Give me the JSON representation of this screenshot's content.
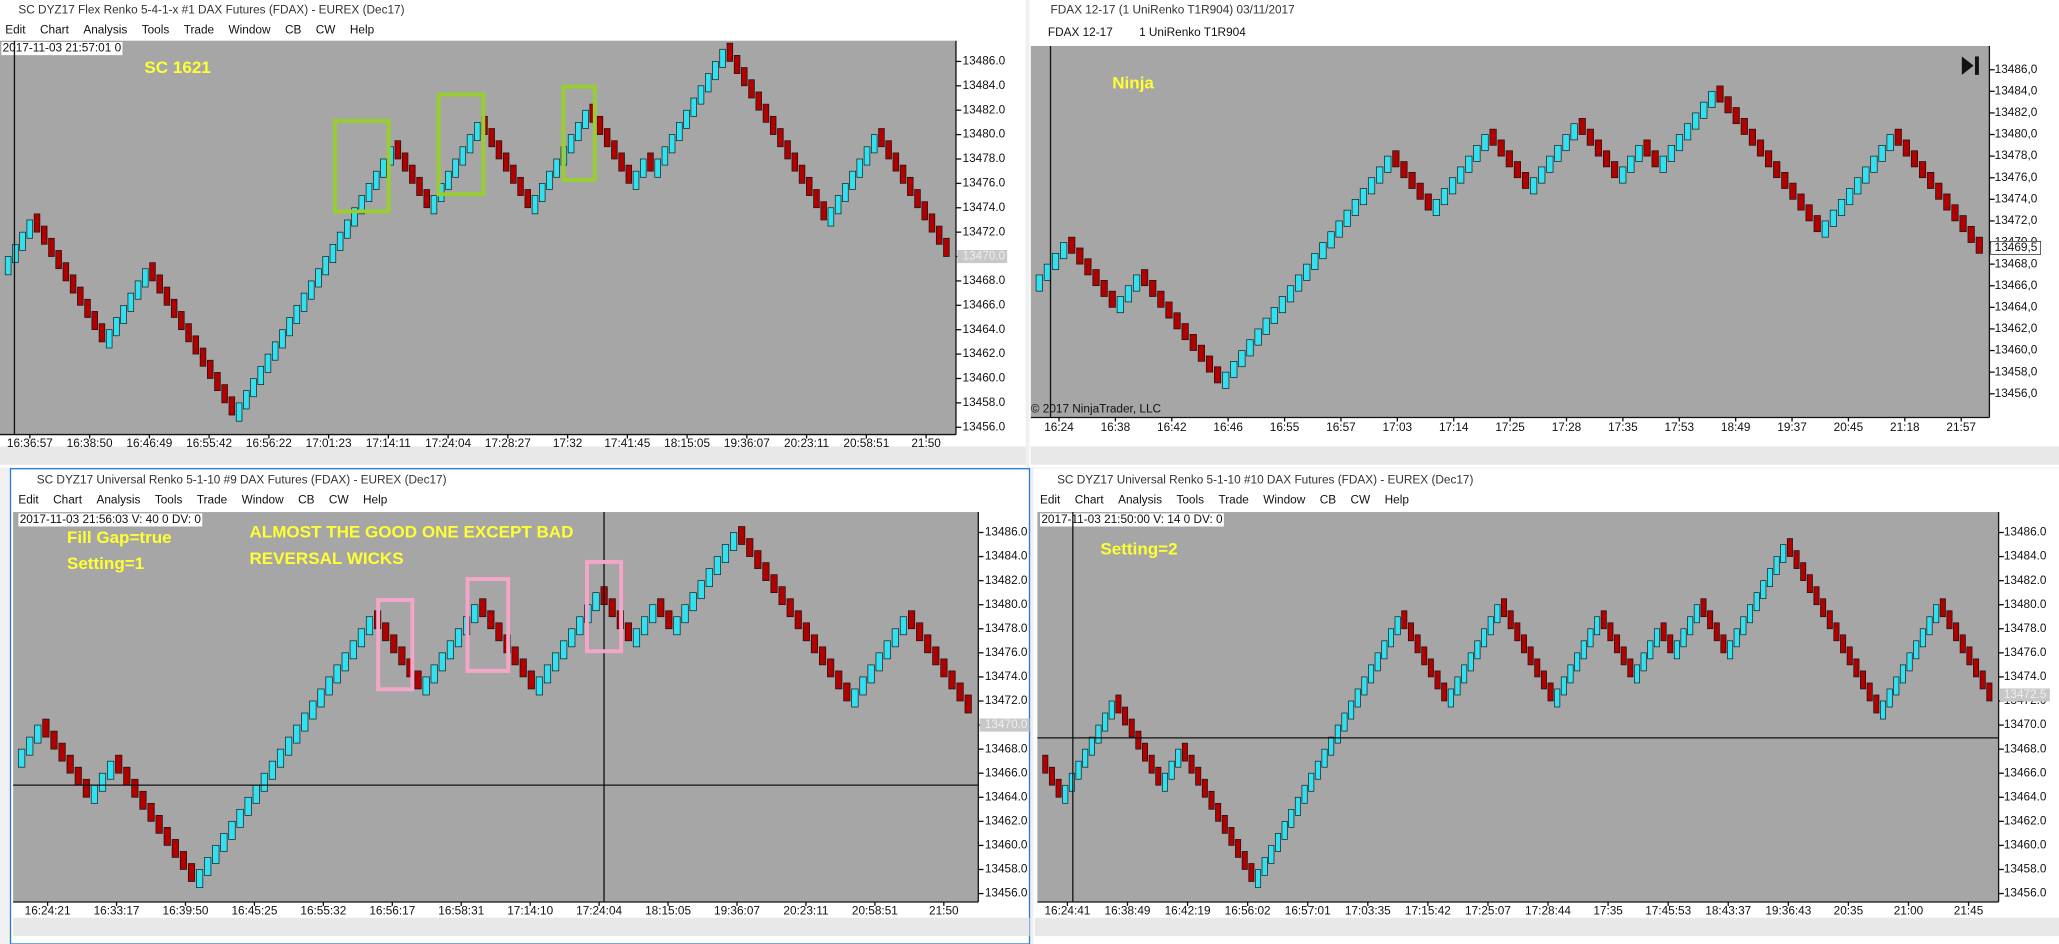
{
  "windows": [
    {
      "title": "SC DYZ17  Flex Renko 5-4-1-x  #1  DAX Futures (FDAX) - EUREX (Dec17)",
      "menu": [
        "Edit",
        "Chart",
        "Analysis",
        "Tools",
        "Trade",
        "Window",
        "CB",
        "CW",
        "Help"
      ]
    },
    {
      "title": "FDAX 12-17 (1 UniRenko T1R904)  03/11/2017",
      "toolbar": [
        "FDAX 12-17",
        "1 UniRenko T1R904"
      ]
    },
    {
      "title": "SC DYZ17  Universal Renko 5-1-10  #9  DAX Futures (FDAX) - EUREX (Dec17)",
      "menu": [
        "Edit",
        "Chart",
        "Analysis",
        "Tools",
        "Trade",
        "Window",
        "CB",
        "CW",
        "Help"
      ]
    },
    {
      "title": "SC DYZ17  Universal Renko 5-1-10  #10  DAX Futures (FDAX) - EUREX (Dec17)",
      "menu": [
        "Edit",
        "Chart",
        "Analysis",
        "Tools",
        "Trade",
        "Window",
        "CB",
        "CW",
        "Help"
      ]
    }
  ],
  "chart_data": [
    {
      "type": "renko",
      "info": "2017-11-03 21:57:01 0",
      "annotations": [
        "SC 1621"
      ],
      "up_color": "#33e0f0",
      "down_color": "#b00000",
      "ylim": [
        13455.4,
        13487.7
      ],
      "yticks": [
        {
          "value": 13456,
          "label": "13456.0"
        },
        {
          "value": 13458,
          "label": "13458.0"
        },
        {
          "value": 13460,
          "label": "13460.0"
        },
        {
          "value": 13462,
          "label": "13462.0"
        },
        {
          "value": 13464,
          "label": "13464.0"
        },
        {
          "value": 13466,
          "label": "13466.0"
        },
        {
          "value": 13468,
          "label": "13468.0"
        },
        {
          "value": 13470,
          "label": "13470.0"
        },
        {
          "value": 13472,
          "label": "13472.0"
        },
        {
          "value": 13474,
          "label": "13474.0"
        },
        {
          "value": 13476,
          "label": "13476.0"
        },
        {
          "value": 13478,
          "label": "13478.0"
        },
        {
          "value": 13480,
          "label": "13480.0"
        },
        {
          "value": 13482,
          "label": "13482.0"
        },
        {
          "value": 13484,
          "label": "13484.0"
        },
        {
          "value": 13486,
          "label": "13486.0"
        }
      ],
      "xtick_labels": [
        "16:36:57",
        "16:38:50",
        "16:46:49",
        "16:55:42",
        "16:56:22",
        "17:01:23",
        "17:14:11",
        "17:24:04",
        "17:28:27",
        "17:32",
        "17:41:45",
        "18:15:05",
        "19:36:07",
        "20:23:11",
        "20:58:51",
        "21:50"
      ],
      "last_price": {
        "value": 13470,
        "label": "13470.0"
      },
      "values": [
        13470,
        13471,
        13472,
        13473,
        13472,
        13471,
        13470,
        13469,
        13468,
        13467,
        13466,
        13465,
        13464,
        13463,
        13464,
        13465,
        13466,
        13467,
        13468,
        13469,
        13468,
        13467,
        13466,
        13465,
        13464,
        13463,
        13462,
        13461,
        13460,
        13459,
        13458,
        13457,
        13458,
        13459,
        13460,
        13461,
        13462,
        13463,
        13464,
        13465,
        13466,
        13467,
        13468,
        13469,
        13470,
        13471,
        13472,
        13473,
        13474,
        13475,
        13476,
        13477,
        13478,
        13479,
        13478,
        13477,
        13476,
        13475,
        13474,
        13475,
        13476,
        13477,
        13478,
        13479,
        13480,
        13481,
        13480,
        13479,
        13478,
        13477,
        13476,
        13475,
        13474,
        13475,
        13476,
        13477,
        13478,
        13479,
        13480,
        13481,
        13482,
        13481,
        13480,
        13479,
        13478,
        13477,
        13476,
        13477,
        13478,
        13477,
        13478,
        13479,
        13480,
        13481,
        13482,
        13483,
        13484,
        13485,
        13486,
        13487,
        13486,
        13485,
        13484,
        13483,
        13482,
        13481,
        13480,
        13479,
        13478,
        13477,
        13476,
        13475,
        13474,
        13473,
        13474,
        13475,
        13476,
        13477,
        13478,
        13479,
        13480,
        13479,
        13478,
        13477,
        13476,
        13475,
        13474,
        13473,
        13472,
        13471,
        13470
      ]
    },
    {
      "type": "renko",
      "annotations": [
        "Ninja",
        "© 2017 NinjaTrader, LLC"
      ],
      "up_color": "#33e0f0",
      "down_color": "#b00000",
      "ylim": [
        13453.8,
        13488.2
      ],
      "yticks": [
        {
          "value": 13456,
          "label": "13456,0"
        },
        {
          "value": 13458,
          "label": "13458,0"
        },
        {
          "value": 13460,
          "label": "13460,0"
        },
        {
          "value": 13462,
          "label": "13462,0"
        },
        {
          "value": 13464,
          "label": "13464,0"
        },
        {
          "value": 13466,
          "label": "13466,0"
        },
        {
          "value": 13468,
          "label": "13468,0"
        },
        {
          "value": 13470,
          "label": "13470,0"
        },
        {
          "value": 13472,
          "label": "13472,0"
        },
        {
          "value": 13474,
          "label": "13474,0"
        },
        {
          "value": 13476,
          "label": "13476,0"
        },
        {
          "value": 13478,
          "label": "13478,0"
        },
        {
          "value": 13480,
          "label": "13480,0"
        },
        {
          "value": 13482,
          "label": "13482,0"
        },
        {
          "value": 13484,
          "label": "13484,0"
        },
        {
          "value": 13486,
          "label": "13486,0"
        }
      ],
      "xtick_labels": [
        "16:24",
        "16:38",
        "16:42",
        "16:46",
        "16:55",
        "16:57",
        "17:03",
        "17:14",
        "17:25",
        "17:28",
        "17:35",
        "17:53",
        "18:49",
        "19:37",
        "20:45",
        "21:18",
        "21:57"
      ],
      "last_price": {
        "value": 13469.5,
        "label": "13469,5"
      },
      "values": [
        13467,
        13468,
        13469,
        13470,
        13469,
        13468,
        13467,
        13466,
        13465,
        13464,
        13465,
        13466,
        13467,
        13466,
        13465,
        13464,
        13463,
        13462,
        13461,
        13460,
        13459,
        13458,
        13457,
        13458,
        13459,
        13460,
        13461,
        13462,
        13463,
        13464,
        13465,
        13466,
        13467,
        13468,
        13469,
        13470,
        13471,
        13472,
        13473,
        13474,
        13475,
        13476,
        13477,
        13478,
        13477,
        13476,
        13475,
        13474,
        13473,
        13474,
        13475,
        13476,
        13477,
        13478,
        13479,
        13480,
        13479,
        13478,
        13477,
        13476,
        13475,
        13476,
        13477,
        13478,
        13479,
        13480,
        13481,
        13480,
        13479,
        13478,
        13477,
        13476,
        13477,
        13478,
        13479,
        13478,
        13477,
        13478,
        13479,
        13480,
        13481,
        13482,
        13483,
        13484,
        13483,
        13482,
        13481,
        13480,
        13479,
        13478,
        13477,
        13476,
        13475,
        13474,
        13473,
        13472,
        13471,
        13472,
        13473,
        13474,
        13475,
        13476,
        13477,
        13478,
        13479,
        13480,
        13479,
        13478,
        13477,
        13476,
        13475,
        13474,
        13473,
        13472,
        13471,
        13470,
        13469
      ]
    },
    {
      "type": "renko",
      "info": "2017-11-03 21:56:03 V: 40 0 DV: 0",
      "annotations": [
        "Fill Gap=true",
        "Setting=1",
        "ALMOST THE GOOD ONE EXCEPT BAD",
        "REVERSAL WICKS"
      ],
      "up_color": "#33e0f0",
      "down_color": "#b00000",
      "ylim": [
        13455.3,
        13487.7
      ],
      "yticks": [
        {
          "value": 13456,
          "label": "13456.0"
        },
        {
          "value": 13458,
          "label": "13458.0"
        },
        {
          "value": 13460,
          "label": "13460.0"
        },
        {
          "value": 13462,
          "label": "13462.0"
        },
        {
          "value": 13464,
          "label": "13464.0"
        },
        {
          "value": 13466,
          "label": "13466.0"
        },
        {
          "value": 13468,
          "label": "13468.0"
        },
        {
          "value": 13470,
          "label": "13470.0"
        },
        {
          "value": 13472,
          "label": "13472.0"
        },
        {
          "value": 13474,
          "label": "13474.0"
        },
        {
          "value": 13476,
          "label": "13476.0"
        },
        {
          "value": 13478,
          "label": "13478.0"
        },
        {
          "value": 13480,
          "label": "13480.0"
        },
        {
          "value": 13482,
          "label": "13482.0"
        },
        {
          "value": 13484,
          "label": "13484.0"
        },
        {
          "value": 13486,
          "label": "13486.0"
        }
      ],
      "xtick_labels": [
        "16:24:21",
        "16:33:17",
        "16:39:50",
        "16:45:25",
        "16:55:32",
        "16:56:17",
        "16:58:31",
        "17:14:10",
        "17:24:04",
        "18:15:05",
        "19:36:07",
        "20:23:11",
        "20:58:51",
        "21:50"
      ],
      "last_price": {
        "value": 13470,
        "label": "13470.0"
      },
      "values": [
        13468,
        13469,
        13470,
        13469,
        13468,
        13467,
        13466,
        13465,
        13464,
        13465,
        13466,
        13467,
        13466,
        13465,
        13464,
        13463,
        13462,
        13461,
        13460,
        13459,
        13458,
        13457,
        13458,
        13459,
        13460,
        13461,
        13462,
        13463,
        13464,
        13465,
        13466,
        13467,
        13468,
        13469,
        13470,
        13471,
        13472,
        13473,
        13474,
        13475,
        13476,
        13477,
        13478,
        13479,
        13478,
        13477,
        13476,
        13475,
        13474,
        13473,
        13474,
        13475,
        13476,
        13477,
        13478,
        13479,
        13480,
        13479,
        13478,
        13477,
        13476,
        13475,
        13474,
        13473,
        13474,
        13475,
        13476,
        13477,
        13478,
        13479,
        13480,
        13481,
        13480,
        13479,
        13478,
        13477,
        13478,
        13479,
        13480,
        13479,
        13478,
        13479,
        13480,
        13481,
        13482,
        13483,
        13484,
        13485,
        13486,
        13485,
        13484,
        13483,
        13482,
        13481,
        13480,
        13479,
        13478,
        13477,
        13476,
        13475,
        13474,
        13473,
        13472,
        13473,
        13474,
        13475,
        13476,
        13477,
        13478,
        13479,
        13478,
        13477,
        13476,
        13475,
        13474,
        13473,
        13472,
        13471
      ]
    },
    {
      "type": "renko",
      "info": "2017-11-03 21:50:00 V: 14 0 DV: 0",
      "annotations": [
        "Setting=2"
      ],
      "up_color": "#33e0f0",
      "down_color": "#b00000",
      "ylim": [
        13455.3,
        13487.7
      ],
      "yticks": [
        {
          "value": 13456,
          "label": "13456.0"
        },
        {
          "value": 13458,
          "label": "13458.0"
        },
        {
          "value": 13460,
          "label": "13460.0"
        },
        {
          "value": 13462,
          "label": "13462.0"
        },
        {
          "value": 13464,
          "label": "13464.0"
        },
        {
          "value": 13466,
          "label": "13466.0"
        },
        {
          "value": 13468,
          "label": "13468.0"
        },
        {
          "value": 13470,
          "label": "13470.0"
        },
        {
          "value": 13472,
          "label": "13472.0"
        },
        {
          "value": 13474,
          "label": "13474.0"
        },
        {
          "value": 13476,
          "label": "13476.0"
        },
        {
          "value": 13478,
          "label": "13478.0"
        },
        {
          "value": 13480,
          "label": "13480.0"
        },
        {
          "value": 13482,
          "label": "13482.0"
        },
        {
          "value": 13484,
          "label": "13484.0"
        },
        {
          "value": 13486,
          "label": "13486.0"
        }
      ],
      "xtick_labels": [
        "16:24:41",
        "16:38:49",
        "16:42:19",
        "16:56:02",
        "16:57:01",
        "17:03:35",
        "17:15:42",
        "17:25:07",
        "17:28:44",
        "17:35",
        "17:45:53",
        "18:43:37",
        "19:36:43",
        "20:35",
        "21:00",
        "21:45"
      ],
      "last_price": {
        "value": 13472.5,
        "label": "13472.5"
      },
      "values": [
        13466,
        13465,
        13464,
        13465,
        13466,
        13467,
        13468,
        13469,
        13470,
        13471,
        13472,
        13471,
        13470,
        13469,
        13468,
        13467,
        13466,
        13465,
        13466,
        13467,
        13468,
        13467,
        13466,
        13465,
        13464,
        13463,
        13462,
        13461,
        13460,
        13459,
        13458,
        13457,
        13458,
        13459,
        13460,
        13461,
        13462,
        13463,
        13464,
        13465,
        13466,
        13467,
        13468,
        13469,
        13470,
        13471,
        13472,
        13473,
        13474,
        13475,
        13476,
        13477,
        13478,
        13479,
        13478,
        13477,
        13476,
        13475,
        13474,
        13473,
        13472,
        13473,
        13474,
        13475,
        13476,
        13477,
        13478,
        13479,
        13480,
        13479,
        13478,
        13477,
        13476,
        13475,
        13474,
        13473,
        13472,
        13473,
        13474,
        13475,
        13476,
        13477,
        13478,
        13479,
        13478,
        13477,
        13476,
        13475,
        13474,
        13475,
        13476,
        13477,
        13478,
        13477,
        13476,
        13477,
        13478,
        13479,
        13480,
        13479,
        13478,
        13477,
        13476,
        13477,
        13478,
        13479,
        13480,
        13481,
        13482,
        13483,
        13484,
        13485,
        13484,
        13483,
        13482,
        13481,
        13480,
        13479,
        13478,
        13477,
        13476,
        13475,
        13474,
        13473,
        13472,
        13471,
        13472,
        13473,
        13474,
        13475,
        13476,
        13477,
        13478,
        13479,
        13480,
        13479,
        13478,
        13477,
        13476,
        13475,
        13474,
        13473,
        13472
      ]
    }
  ]
}
